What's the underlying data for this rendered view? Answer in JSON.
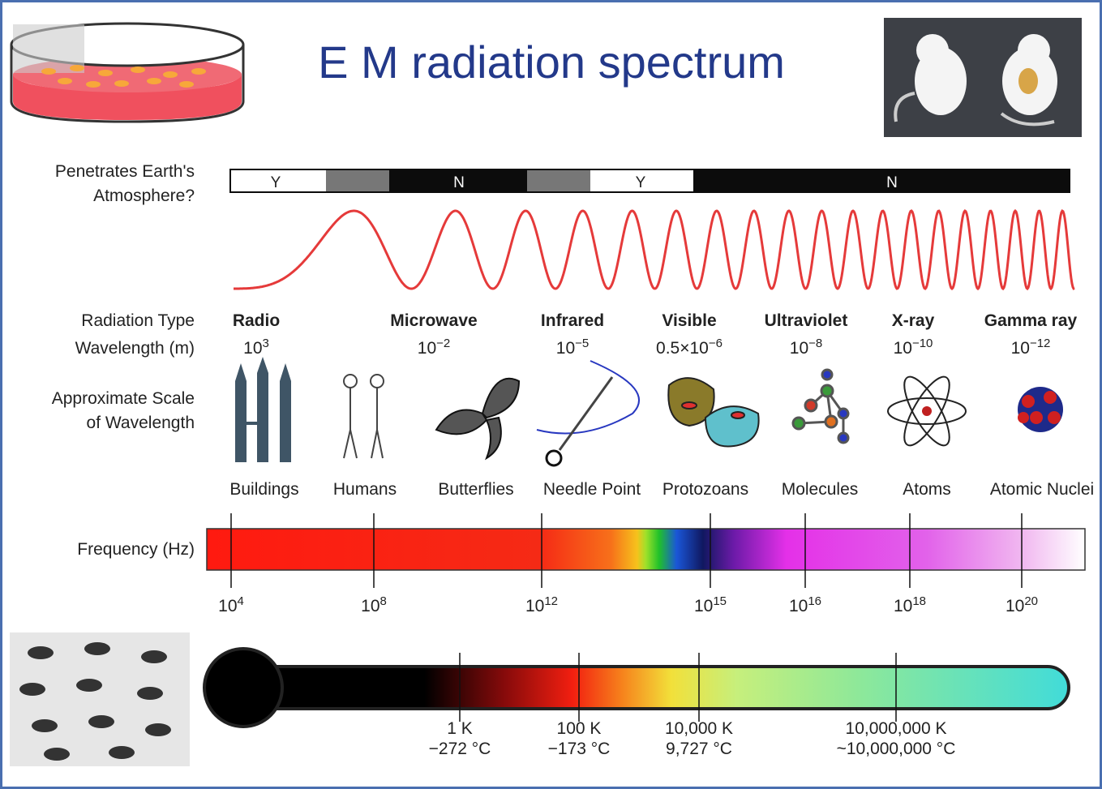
{
  "title": "E M radiation spectrum",
  "row_labels": {
    "penetrates": [
      "Penetrates Earth's",
      "Atmosphere?"
    ],
    "radiation_type": "Radiation Type",
    "wavelength": "Wavelength (m)",
    "scale": [
      "Approximate Scale",
      "of Wavelength"
    ],
    "frequency": "Frequency (Hz)"
  },
  "atmosphere": [
    "Y",
    "N",
    "Y",
    "N"
  ],
  "radiation_types": [
    {
      "name": "Radio",
      "wavelength_base": "10",
      "wavelength_exp": "3"
    },
    {
      "name": "Microwave",
      "wavelength_base": "10",
      "wavelength_exp": "−2"
    },
    {
      "name": "Infrared",
      "wavelength_base": "10",
      "wavelength_exp": "−5"
    },
    {
      "name": "Visible",
      "wavelength_base": "0.5×10",
      "wavelength_exp": "−6"
    },
    {
      "name": "Ultraviolet",
      "wavelength_base": "10",
      "wavelength_exp": "−8"
    },
    {
      "name": "X-ray",
      "wavelength_base": "10",
      "wavelength_exp": "−10"
    },
    {
      "name": "Gamma ray",
      "wavelength_base": "10",
      "wavelength_exp": "−12"
    }
  ],
  "scales": [
    "Buildings",
    "Humans",
    "Butterflies",
    "Needle Point",
    "Protozoans",
    "Molecules",
    "Atoms",
    "Atomic Nuclei"
  ],
  "frequency_ticks": [
    {
      "base": "10",
      "exp": "4"
    },
    {
      "base": "10",
      "exp": "8"
    },
    {
      "base": "10",
      "exp": "12"
    },
    {
      "base": "10",
      "exp": "15"
    },
    {
      "base": "10",
      "exp": "16"
    },
    {
      "base": "10",
      "exp": "18"
    },
    {
      "base": "10",
      "exp": "20"
    }
  ],
  "temperatures": [
    {
      "kelvin": "1 K",
      "celsius": "−272 °C"
    },
    {
      "kelvin": "100 K",
      "celsius": "−173 °C"
    },
    {
      "kelvin": "10,000 K",
      "celsius": "9,727 °C"
    },
    {
      "kelvin": "10,000,000 K",
      "celsius": "~10,000,000 °C"
    }
  ]
}
